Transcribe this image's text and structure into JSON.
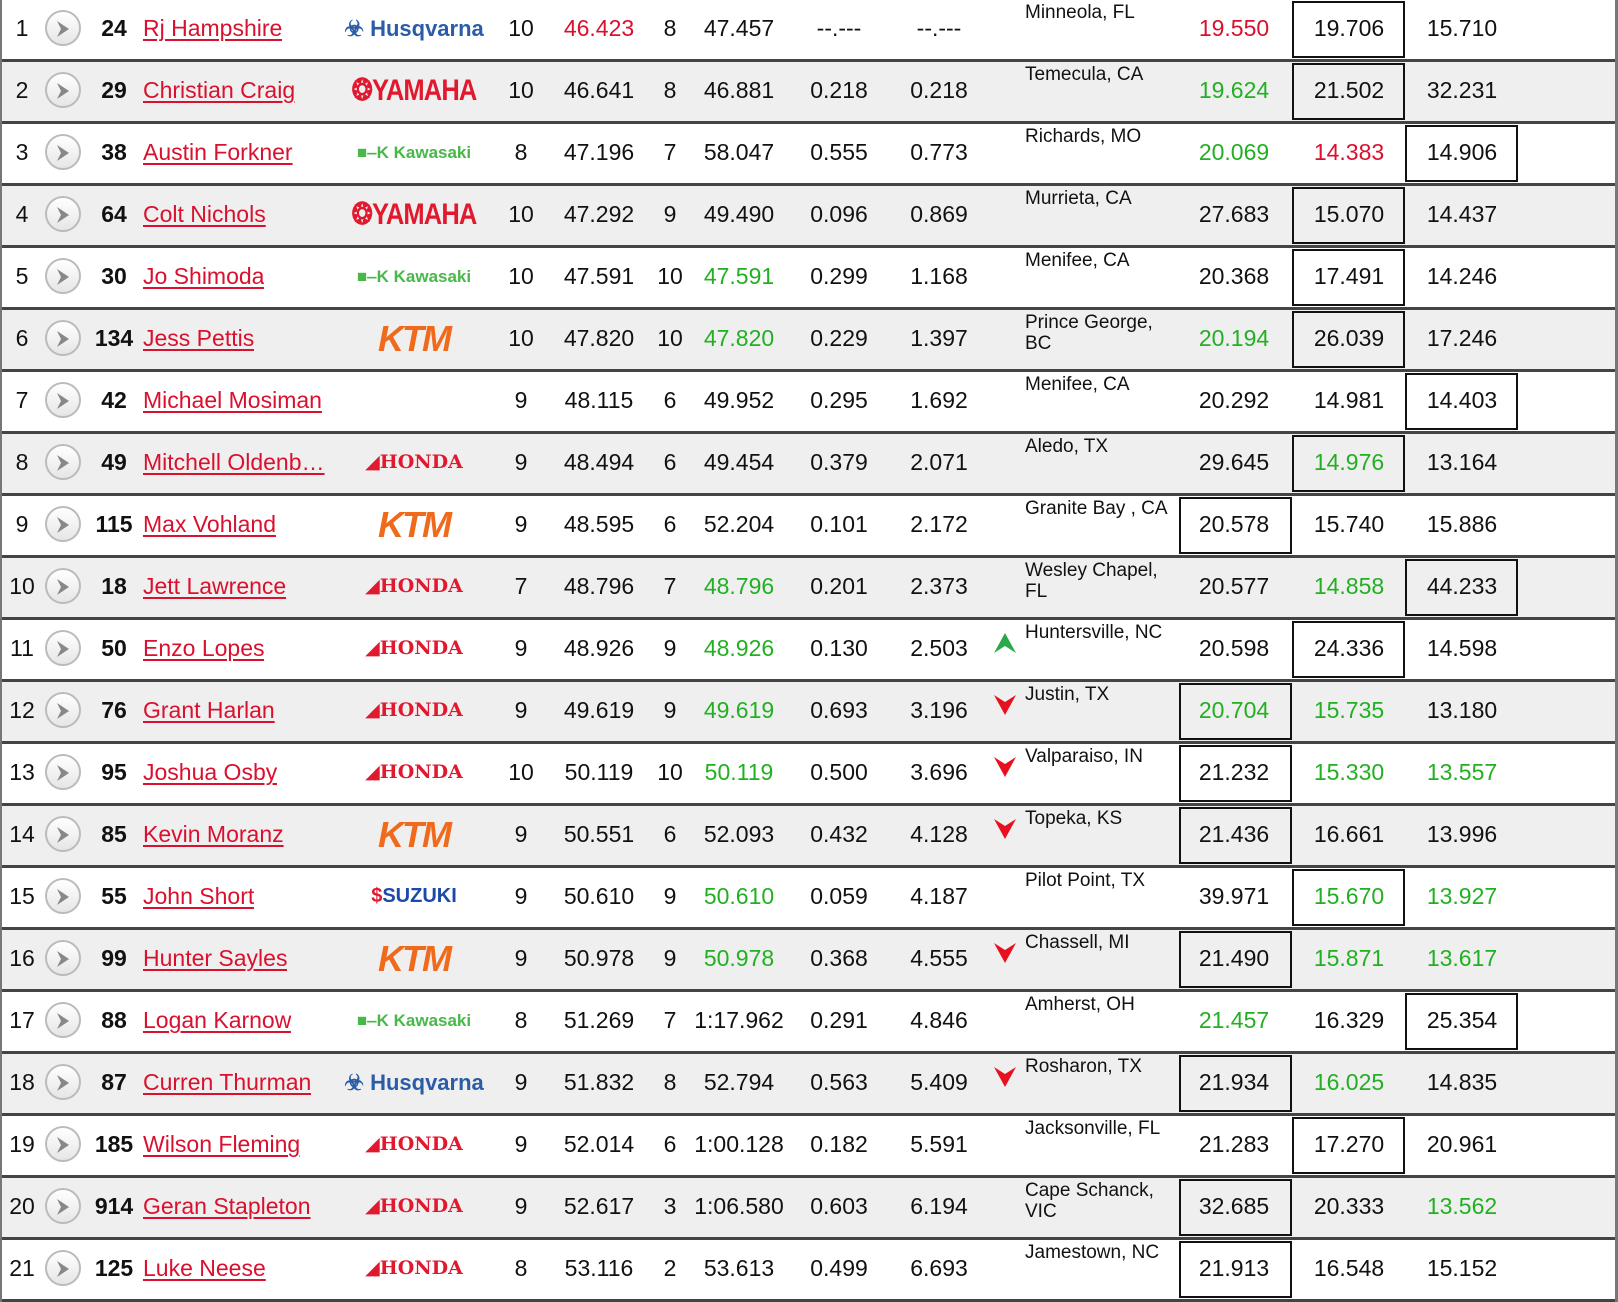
{
  "colors": {
    "red": "#d9102e",
    "green": "#22b022",
    "link": "#d9102e"
  },
  "row_icon": "play-circle-icon",
  "rows": [
    {
      "pos": "1",
      "num": "24",
      "name": "Rj Hampshire",
      "brand": "Husqvarna",
      "laps": "10",
      "best": "46.423",
      "best_color": "red",
      "lap": "8",
      "last": "47.457",
      "diff": "--.---",
      "gap": "--.---",
      "trend": "",
      "home": "Minneola, FL",
      "s": [
        "19.550",
        "19.706",
        "15.710"
      ],
      "sc": [
        "red",
        "",
        ""
      ],
      "box": 1
    },
    {
      "pos": "2",
      "num": "29",
      "name": "Christian Craig",
      "brand": "YAMAHA",
      "laps": "10",
      "best": "46.641",
      "lap": "8",
      "last": "46.881",
      "diff": "0.218",
      "gap": "0.218",
      "trend": "",
      "home": "Temecula, CA",
      "s": [
        "19.624",
        "21.502",
        "32.231"
      ],
      "sc": [
        "green",
        "",
        ""
      ],
      "box": 1
    },
    {
      "pos": "3",
      "num": "38",
      "name": "Austin Forkner",
      "brand": "Kawasaki",
      "laps": "8",
      "best": "47.196",
      "lap": "7",
      "last": "58.047",
      "diff": "0.555",
      "gap": "0.773",
      "trend": "",
      "home": "Richards, MO",
      "s": [
        "20.069",
        "14.383",
        "14.906"
      ],
      "sc": [
        "green",
        "red",
        ""
      ],
      "box": 2
    },
    {
      "pos": "4",
      "num": "64",
      "name": "Colt Nichols",
      "brand": "YAMAHA",
      "laps": "10",
      "best": "47.292",
      "lap": "9",
      "last": "49.490",
      "diff": "0.096",
      "gap": "0.869",
      "trend": "",
      "home": "Murrieta, CA",
      "s": [
        "27.683",
        "15.070",
        "14.437"
      ],
      "sc": [
        "",
        "",
        ""
      ],
      "box": 1
    },
    {
      "pos": "5",
      "num": "30",
      "name": "Jo Shimoda",
      "brand": "Kawasaki",
      "laps": "10",
      "best": "47.591",
      "lap": "10",
      "last": "47.591",
      "last_color": "green",
      "diff": "0.299",
      "gap": "1.168",
      "trend": "",
      "home": "Menifee, CA",
      "s": [
        "20.368",
        "17.491",
        "14.246"
      ],
      "sc": [
        "",
        "",
        ""
      ],
      "box": 1
    },
    {
      "pos": "6",
      "num": "134",
      "name": "Jess Pettis",
      "brand": "KTM",
      "laps": "10",
      "best": "47.820",
      "lap": "10",
      "last": "47.820",
      "last_color": "green",
      "diff": "0.229",
      "gap": "1.397",
      "trend": "",
      "home": "Prince George, BC",
      "s": [
        "20.194",
        "26.039",
        "17.246"
      ],
      "sc": [
        "green",
        "",
        ""
      ],
      "box": 1
    },
    {
      "pos": "7",
      "num": "42",
      "name": "Michael Mosiman",
      "brand": "",
      "laps": "9",
      "best": "48.115",
      "lap": "6",
      "last": "49.952",
      "diff": "0.295",
      "gap": "1.692",
      "trend": "",
      "home": "Menifee, CA",
      "s": [
        "20.292",
        "14.981",
        "14.403"
      ],
      "sc": [
        "",
        "",
        ""
      ],
      "box": 2
    },
    {
      "pos": "8",
      "num": "49",
      "name": "Mitchell Oldenb…",
      "brand": "HONDA",
      "laps": "9",
      "best": "48.494",
      "lap": "6",
      "last": "49.454",
      "diff": "0.379",
      "gap": "2.071",
      "trend": "",
      "home": "Aledo, TX",
      "s": [
        "29.645",
        "14.976",
        "13.164"
      ],
      "sc": [
        "",
        "green",
        ""
      ],
      "box": 1
    },
    {
      "pos": "9",
      "num": "115",
      "name": "Max Vohland",
      "brand": "KTM",
      "laps": "9",
      "best": "48.595",
      "lap": "6",
      "last": "52.204",
      "diff": "0.101",
      "gap": "2.172",
      "trend": "",
      "home": "Granite Bay , CA",
      "s": [
        "20.578",
        "15.740",
        "15.886"
      ],
      "sc": [
        "",
        "",
        ""
      ],
      "box": 0
    },
    {
      "pos": "10",
      "num": "18",
      "name": "Jett Lawrence",
      "brand": "HONDA",
      "laps": "7",
      "best": "48.796",
      "lap": "7",
      "last": "48.796",
      "last_color": "green",
      "diff": "0.201",
      "gap": "2.373",
      "trend": "",
      "home": "Wesley Chapel, FL",
      "s": [
        "20.577",
        "14.858",
        "44.233"
      ],
      "sc": [
        "",
        "green",
        ""
      ],
      "box": 2
    },
    {
      "pos": "11",
      "num": "50",
      "name": "Enzo Lopes",
      "brand": "HONDA",
      "laps": "9",
      "best": "48.926",
      "lap": "9",
      "last": "48.926",
      "last_color": "green",
      "diff": "0.130",
      "gap": "2.503",
      "trend": "up",
      "home": "Huntersville, NC",
      "s": [
        "20.598",
        "24.336",
        "14.598"
      ],
      "sc": [
        "",
        "",
        ""
      ],
      "box": 1
    },
    {
      "pos": "12",
      "num": "76",
      "name": "Grant Harlan",
      "brand": "HONDA",
      "laps": "9",
      "best": "49.619",
      "lap": "9",
      "last": "49.619",
      "last_color": "green",
      "diff": "0.693",
      "gap": "3.196",
      "trend": "down",
      "home": "Justin, TX",
      "s": [
        "20.704",
        "15.735",
        "13.180"
      ],
      "sc": [
        "green",
        "green",
        ""
      ],
      "box": 0
    },
    {
      "pos": "13",
      "num": "95",
      "name": "Joshua Osby",
      "brand": "HONDA",
      "laps": "10",
      "best": "50.119",
      "lap": "10",
      "last": "50.119",
      "last_color": "green",
      "diff": "0.500",
      "gap": "3.696",
      "trend": "down",
      "home": "Valparaiso, IN",
      "s": [
        "21.232",
        "15.330",
        "13.557"
      ],
      "sc": [
        "",
        "green",
        "green"
      ],
      "box": 0
    },
    {
      "pos": "14",
      "num": "85",
      "name": "Kevin Moranz",
      "brand": "KTM",
      "laps": "9",
      "best": "50.551",
      "lap": "6",
      "last": "52.093",
      "diff": "0.432",
      "gap": "4.128",
      "trend": "down",
      "home": "Topeka, KS",
      "s": [
        "21.436",
        "16.661",
        "13.996"
      ],
      "sc": [
        "",
        "",
        ""
      ],
      "box": 0
    },
    {
      "pos": "15",
      "num": "55",
      "name": "John Short",
      "brand": "SUZUKI",
      "laps": "9",
      "best": "50.610",
      "lap": "9",
      "last": "50.610",
      "last_color": "green",
      "diff": "0.059",
      "gap": "4.187",
      "trend": "",
      "home": "Pilot Point, TX",
      "s": [
        "39.971",
        "15.670",
        "13.927"
      ],
      "sc": [
        "",
        "green",
        "green"
      ],
      "box": 1
    },
    {
      "pos": "16",
      "num": "99",
      "name": "Hunter Sayles",
      "brand": "KTM",
      "laps": "9",
      "best": "50.978",
      "lap": "9",
      "last": "50.978",
      "last_color": "green",
      "diff": "0.368",
      "gap": "4.555",
      "trend": "down",
      "home": "Chassell, MI",
      "s": [
        "21.490",
        "15.871",
        "13.617"
      ],
      "sc": [
        "",
        "green",
        "green"
      ],
      "box": 0
    },
    {
      "pos": "17",
      "num": "88",
      "name": "Logan Karnow",
      "brand": "Kawasaki",
      "laps": "8",
      "best": "51.269",
      "lap": "7",
      "last": "1:17.962",
      "diff": "0.291",
      "gap": "4.846",
      "trend": "",
      "home": "Amherst, OH",
      "s": [
        "21.457",
        "16.329",
        "25.354"
      ],
      "sc": [
        "green",
        "",
        ""
      ],
      "box": 2
    },
    {
      "pos": "18",
      "num": "87",
      "name": "Curren Thurman",
      "brand": "Husqvarna",
      "laps": "9",
      "best": "51.832",
      "lap": "8",
      "last": "52.794",
      "diff": "0.563",
      "gap": "5.409",
      "trend": "down",
      "home": "Rosharon, TX",
      "s": [
        "21.934",
        "16.025",
        "14.835"
      ],
      "sc": [
        "",
        "green",
        ""
      ],
      "box": 0
    },
    {
      "pos": "19",
      "num": "185",
      "name": "Wilson Fleming",
      "brand": "HONDA",
      "laps": "9",
      "best": "52.014",
      "lap": "6",
      "last": "1:00.128",
      "diff": "0.182",
      "gap": "5.591",
      "trend": "",
      "home": "Jacksonville, FL",
      "s": [
        "21.283",
        "17.270",
        "20.961"
      ],
      "sc": [
        "",
        "",
        ""
      ],
      "box": 1
    },
    {
      "pos": "20",
      "num": "914",
      "name": "Geran Stapleton",
      "brand": "HONDA",
      "laps": "9",
      "best": "52.617",
      "lap": "3",
      "last": "1:06.580",
      "diff": "0.603",
      "gap": "6.194",
      "trend": "",
      "home": "Cape Schanck, VIC",
      "s": [
        "32.685",
        "20.333",
        "13.562"
      ],
      "sc": [
        "",
        "",
        "green"
      ],
      "box": 0
    },
    {
      "pos": "21",
      "num": "125",
      "name": "Luke Neese",
      "brand": "HONDA",
      "laps": "8",
      "best": "53.116",
      "lap": "2",
      "last": "53.613",
      "diff": "0.499",
      "gap": "6.693",
      "trend": "",
      "home": "Jamestown, NC",
      "s": [
        "21.913",
        "16.548",
        "15.152"
      ],
      "sc": [
        "",
        "",
        ""
      ],
      "box": 0
    }
  ]
}
